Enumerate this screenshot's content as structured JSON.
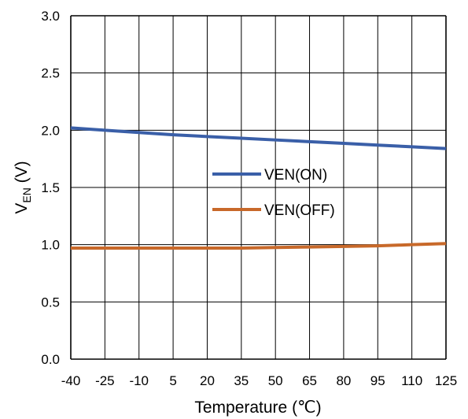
{
  "chart_data": {
    "type": "line",
    "x": [
      -40,
      -25,
      -10,
      5,
      20,
      35,
      50,
      65,
      80,
      95,
      110,
      125
    ],
    "xlim": [
      -40,
      125
    ],
    "ylim": [
      0,
      3.0
    ],
    "xticks": [
      "-40",
      "-25",
      "-10",
      "5",
      "20",
      "35",
      "50",
      "65",
      "80",
      "95",
      "110",
      "125"
    ],
    "yticks": [
      "0.0",
      "0.5",
      "1.0",
      "1.5",
      "2.0",
      "2.5",
      "3.0"
    ],
    "xlabel": "Temperature (℃)",
    "ylabel_main": "V",
    "ylabel_sub": "EN",
    "ylabel_unit": " (V)",
    "grid": true,
    "legend_position": "center",
    "series": [
      {
        "name": "VEN(ON)",
        "color": "#3A5FA8",
        "values": [
          2.02,
          2.0,
          1.98,
          1.96,
          1.945,
          1.93,
          1.915,
          1.9,
          1.885,
          1.87,
          1.855,
          1.84
        ]
      },
      {
        "name": "VEN(OFF)",
        "color": "#C8692A",
        "values": [
          0.97,
          0.97,
          0.97,
          0.97,
          0.97,
          0.97,
          0.975,
          0.98,
          0.985,
          0.99,
          1.0,
          1.01
        ]
      }
    ]
  }
}
